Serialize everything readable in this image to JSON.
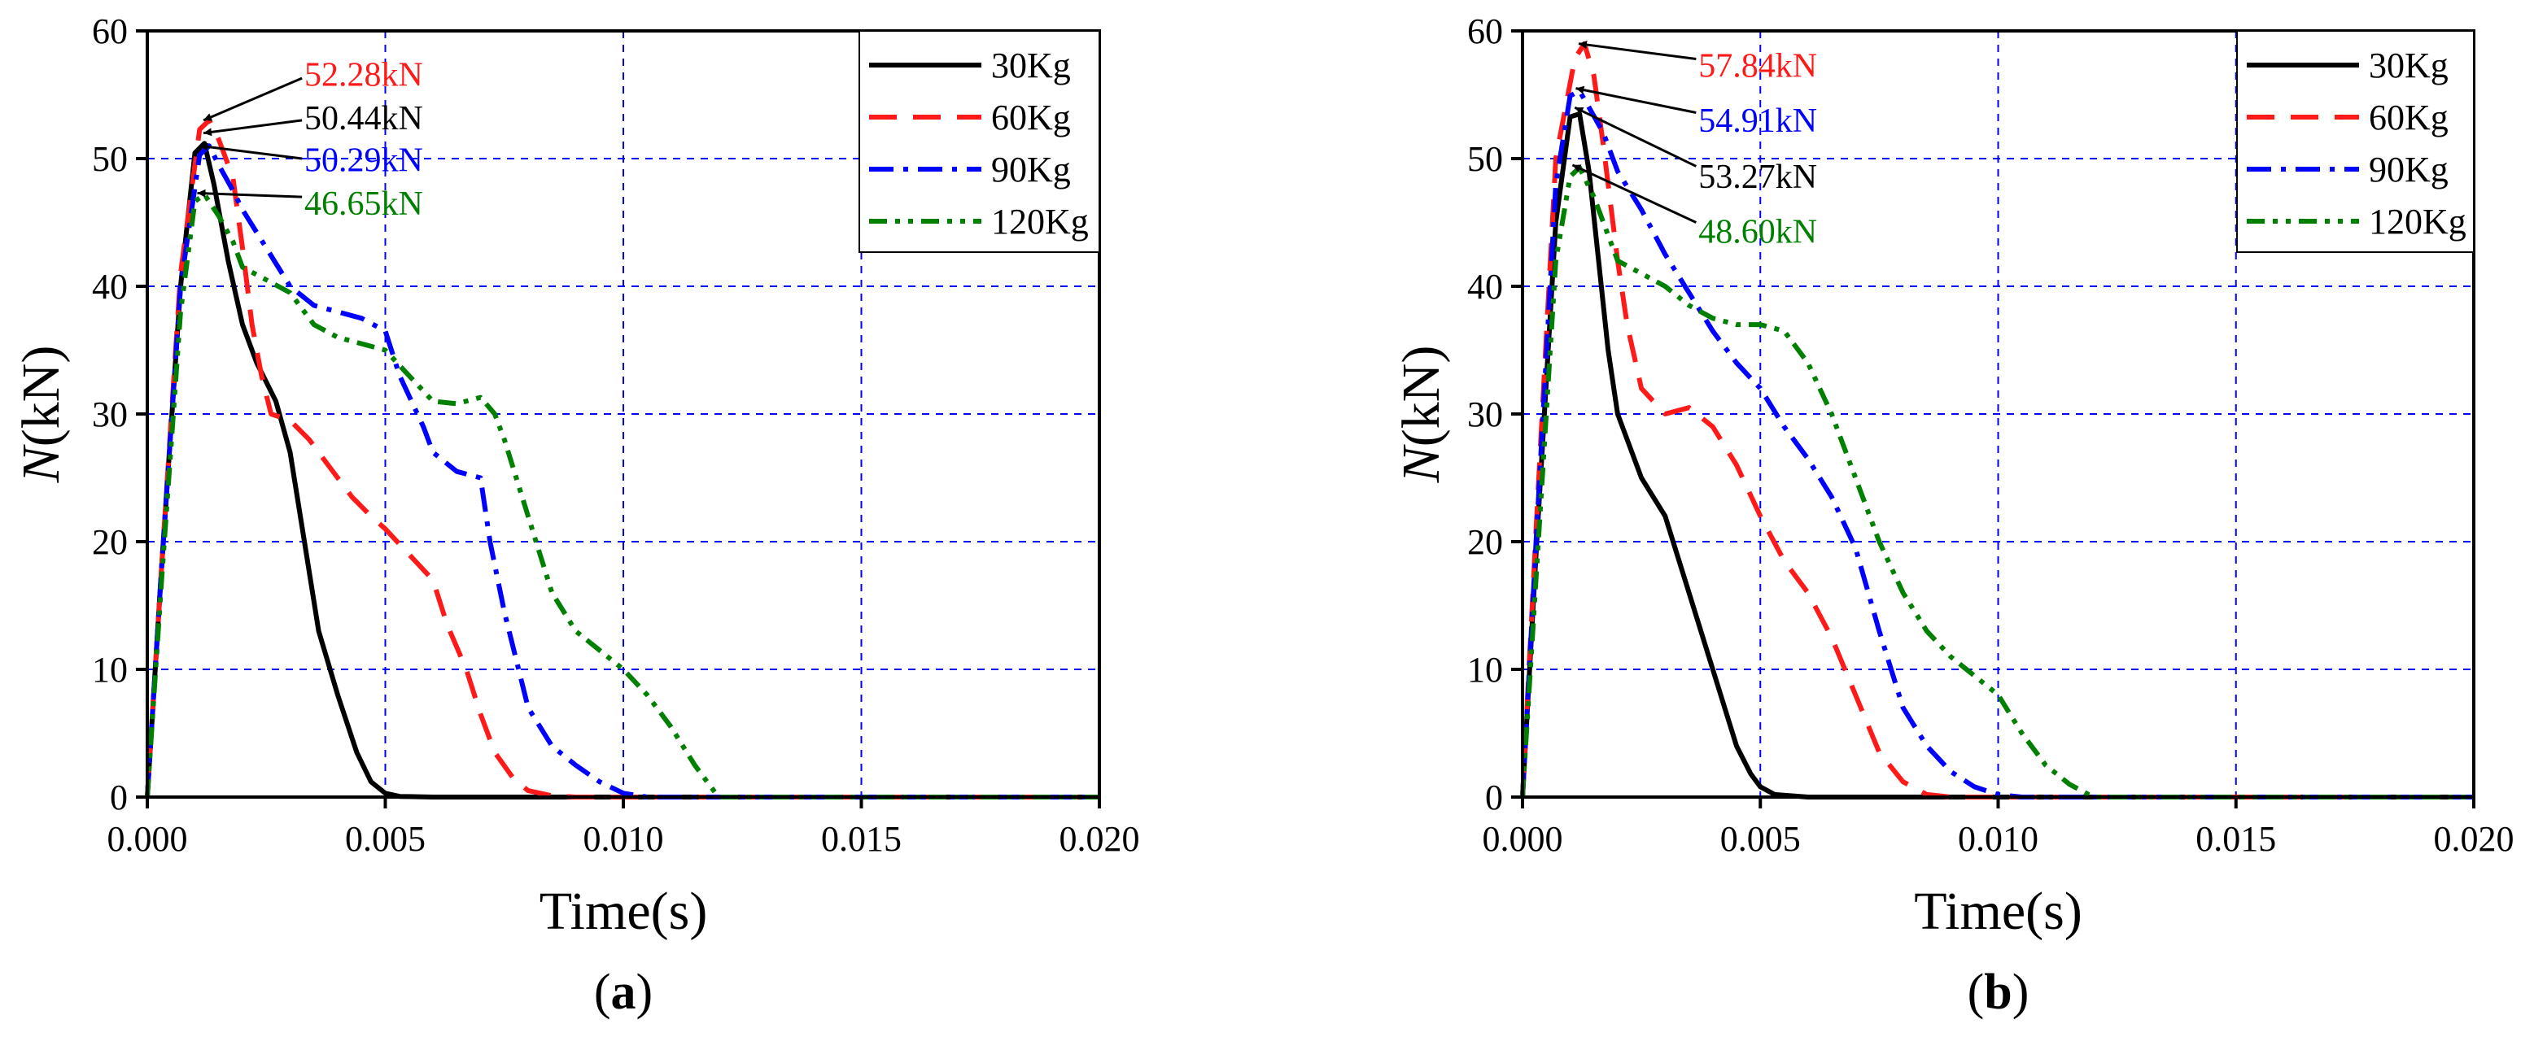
{
  "series_styles": [
    {
      "color": "#000000",
      "dash": ""
    },
    {
      "color": "#ff1a1a",
      "dash": "34,20"
    },
    {
      "color": "#0000ff",
      "dash": "30,12,6,12"
    },
    {
      "color": "#008000",
      "dash": "22,10,6,10,6,10"
    }
  ],
  "chart_data": [
    {
      "type": "line",
      "panel_label": "(a)",
      "title": "",
      "xlabel": "Time(s)",
      "ylabel_italic": "N",
      "ylabel_rest": "(kN)",
      "xlim": [
        0,
        0.02
      ],
      "ylim": [
        0,
        60
      ],
      "grid": true,
      "legend_position": "top-right",
      "x_ticks": [
        0,
        0.005,
        0.01,
        0.015,
        0.02
      ],
      "x_tick_labels": [
        "0.000",
        "0.005",
        "0.010",
        "0.015",
        "0.020"
      ],
      "y_ticks": [
        0,
        10,
        20,
        30,
        40,
        50,
        60
      ],
      "y_tick_labels": [
        "0",
        "10",
        "20",
        "30",
        "40",
        "50",
        "60"
      ],
      "series": [
        {
          "name": "30Kg",
          "x": [
            0,
            0.0003,
            0.0007,
            0.001,
            0.0012,
            0.0014,
            0.0017,
            0.002,
            0.0023,
            0.0027,
            0.003,
            0.0033,
            0.0036,
            0.004,
            0.0044,
            0.0047,
            0.005,
            0.0053,
            0.006,
            0.008,
            0.02
          ],
          "y": [
            0,
            18,
            40,
            50.44,
            51.2,
            48,
            42,
            37,
            34,
            31,
            27,
            20,
            13,
            8,
            3.5,
            1.2,
            0.3,
            0.05,
            0,
            0,
            0
          ]
        },
        {
          "name": "60Kg",
          "x": [
            0,
            0.0003,
            0.0007,
            0.0011,
            0.0013,
            0.0015,
            0.0018,
            0.002,
            0.0022,
            0.0024,
            0.0026,
            0.003,
            0.0034,
            0.0037,
            0.004,
            0.0043,
            0.0047,
            0.005,
            0.0055,
            0.006,
            0.0063,
            0.0067,
            0.007,
            0.0073,
            0.0077,
            0.008,
            0.0085,
            0.009,
            0.02
          ],
          "y": [
            0,
            18,
            41,
            52.28,
            53,
            51.5,
            48.5,
            43,
            37,
            33,
            30,
            29.5,
            28,
            26.5,
            25,
            23.5,
            22,
            21,
            19,
            17,
            13.5,
            10,
            6.5,
            3.5,
            1.4,
            0.5,
            0.1,
            0,
            0
          ]
        },
        {
          "name": "90Kg",
          "x": [
            0,
            0.0003,
            0.0007,
            0.0011,
            0.0013,
            0.0015,
            0.0018,
            0.002,
            0.0025,
            0.003,
            0.0035,
            0.004,
            0.0045,
            0.005,
            0.0053,
            0.0058,
            0.006,
            0.0065,
            0.007,
            0.0072,
            0.0075,
            0.008,
            0.0085,
            0.009,
            0.0095,
            0.01,
            0.0105,
            0.02
          ],
          "y": [
            0,
            18,
            40,
            50.29,
            51,
            49.5,
            47.5,
            46,
            43,
            40,
            38.5,
            38,
            37.5,
            36.5,
            33,
            29,
            27,
            25.5,
            25,
            20,
            14.5,
            7,
            4,
            2.5,
            1.2,
            0.3,
            0,
            0
          ]
        },
        {
          "name": "120Kg",
          "x": [
            0,
            0.0003,
            0.0007,
            0.001,
            0.0012,
            0.0015,
            0.0018,
            0.002,
            0.0025,
            0.003,
            0.0035,
            0.004,
            0.0045,
            0.005,
            0.0055,
            0.006,
            0.0065,
            0.007,
            0.0073,
            0.0075,
            0.008,
            0.0085,
            0.009,
            0.0095,
            0.01,
            0.0105,
            0.011,
            0.0115,
            0.012,
            0.02
          ],
          "y": [
            0,
            17,
            38,
            46.65,
            47.2,
            45.5,
            43.5,
            41.5,
            40.5,
            39.5,
            37,
            36,
            35.5,
            35,
            33,
            31,
            30.8,
            31.3,
            30,
            28,
            22,
            16,
            13,
            11.5,
            10,
            8,
            5.5,
            2.5,
            0,
            0
          ]
        }
      ],
      "annotations": [
        {
          "text": "52.28kN",
          "color": "#ff1a1a",
          "x": 0.0033,
          "y": 56.6,
          "tip_x": 0.00118,
          "tip_y": 53.0,
          "tail_x": 0.00325,
          "tail_y": 56.3
        },
        {
          "text": "50.44kN",
          "color": "#000000",
          "x": 0.0033,
          "y": 53.2,
          "tip_x": 0.00118,
          "tip_y": 52.0,
          "tail_x": 0.00325,
          "tail_y": 53.0
        },
        {
          "text": "50.29kN",
          "color": "#0000ff",
          "x": 0.0033,
          "y": 49.9,
          "tip_x": 0.0011,
          "tip_y": 51.0,
          "tail_x": 0.00325,
          "tail_y": 50.0
        },
        {
          "text": "46.65kN",
          "color": "#008000",
          "x": 0.0033,
          "y": 46.5,
          "tip_x": 0.00105,
          "tip_y": 47.3,
          "tail_x": 0.00325,
          "tail_y": 47.0
        }
      ]
    },
    {
      "type": "line",
      "panel_label": "(b)",
      "title": "",
      "xlabel": "Time(s)",
      "ylabel_italic": "N",
      "ylabel_rest": "(kN)",
      "xlim": [
        0,
        0.02
      ],
      "ylim": [
        0,
        60
      ],
      "grid": true,
      "legend_position": "top-right",
      "x_ticks": [
        0,
        0.005,
        0.01,
        0.015,
        0.02
      ],
      "x_tick_labels": [
        "0.000",
        "0.005",
        "0.010",
        "0.015",
        "0.020"
      ],
      "y_ticks": [
        0,
        10,
        20,
        30,
        40,
        50,
        60
      ],
      "y_tick_labels": [
        "0",
        "10",
        "20",
        "30",
        "40",
        "50",
        "60"
      ],
      "series": [
        {
          "name": "30Kg",
          "x": [
            0,
            0.0003,
            0.0007,
            0.001,
            0.0012,
            0.0014,
            0.0016,
            0.0018,
            0.002,
            0.0025,
            0.003,
            0.0035,
            0.004,
            0.0045,
            0.0048,
            0.005,
            0.0053,
            0.006,
            0.008,
            0.02
          ],
          "y": [
            0,
            20,
            45,
            53.27,
            53.5,
            49,
            42,
            35,
            30,
            25,
            22,
            16,
            10,
            4,
            1.8,
            0.8,
            0.2,
            0,
            0,
            0
          ]
        },
        {
          "name": "60Kg",
          "x": [
            0,
            0.0003,
            0.0007,
            0.0011,
            0.0013,
            0.0015,
            0.0017,
            0.002,
            0.0022,
            0.0025,
            0.003,
            0.0035,
            0.004,
            0.0045,
            0.005,
            0.0055,
            0.006,
            0.0065,
            0.007,
            0.0075,
            0.008,
            0.0085,
            0.009,
            0.02
          ],
          "y": [
            0,
            22,
            50,
            57.84,
            59,
            56.5,
            51,
            42,
            37,
            32,
            30,
            30.5,
            29,
            26,
            22,
            18.5,
            16,
            12.5,
            8,
            3.5,
            1.2,
            0.2,
            0,
            0
          ]
        },
        {
          "name": "90Kg",
          "x": [
            0,
            0.0003,
            0.0007,
            0.001,
            0.0012,
            0.0014,
            0.0017,
            0.002,
            0.0025,
            0.003,
            0.0035,
            0.004,
            0.0045,
            0.005,
            0.0055,
            0.006,
            0.0065,
            0.007,
            0.0075,
            0.008,
            0.0085,
            0.009,
            0.0095,
            0.01,
            0.0105,
            0.02
          ],
          "y": [
            0,
            21,
            48,
            54.91,
            55.3,
            54,
            52,
            49,
            46,
            42.5,
            39.5,
            36.5,
            34,
            32,
            29,
            26.5,
            23.5,
            19.5,
            13,
            7,
            4,
            2,
            0.8,
            0.2,
            0,
            0
          ]
        },
        {
          "name": "120Kg",
          "x": [
            0,
            0.0003,
            0.0007,
            0.001,
            0.0012,
            0.0015,
            0.0018,
            0.002,
            0.0025,
            0.003,
            0.0035,
            0.004,
            0.0045,
            0.005,
            0.0055,
            0.006,
            0.0065,
            0.007,
            0.0075,
            0.008,
            0.0085,
            0.009,
            0.0095,
            0.01,
            0.0105,
            0.011,
            0.0115,
            0.012,
            0.02
          ],
          "y": [
            0,
            18,
            42,
            48.6,
            49.3,
            47,
            44,
            42,
            41,
            40,
            38.5,
            37.5,
            37,
            37,
            36.5,
            34,
            30,
            25,
            20,
            16,
            13,
            11,
            9.5,
            8,
            5,
            2.5,
            1,
            0,
            0
          ]
        }
      ],
      "annotations": [
        {
          "text": "57.84kN",
          "color": "#ff1a1a",
          "x": 0.0037,
          "y": 57.3,
          "tip_x": 0.00118,
          "tip_y": 59.0,
          "tail_x": 0.00365,
          "tail_y": 57.8
        },
        {
          "text": "54.91kN",
          "color": "#0000ff",
          "x": 0.0037,
          "y": 53.0,
          "tip_x": 0.00112,
          "tip_y": 55.5,
          "tail_x": 0.00365,
          "tail_y": 53.6
        },
        {
          "text": "53.27kN",
          "color": "#000000",
          "x": 0.0037,
          "y": 48.6,
          "tip_x": 0.0011,
          "tip_y": 54.0,
          "tail_x": 0.00365,
          "tail_y": 49.4
        },
        {
          "text": "48.60kN",
          "color": "#008000",
          "x": 0.0037,
          "y": 44.3,
          "tip_x": 0.00105,
          "tip_y": 49.5,
          "tail_x": 0.00365,
          "tail_y": 45.0
        }
      ]
    }
  ]
}
